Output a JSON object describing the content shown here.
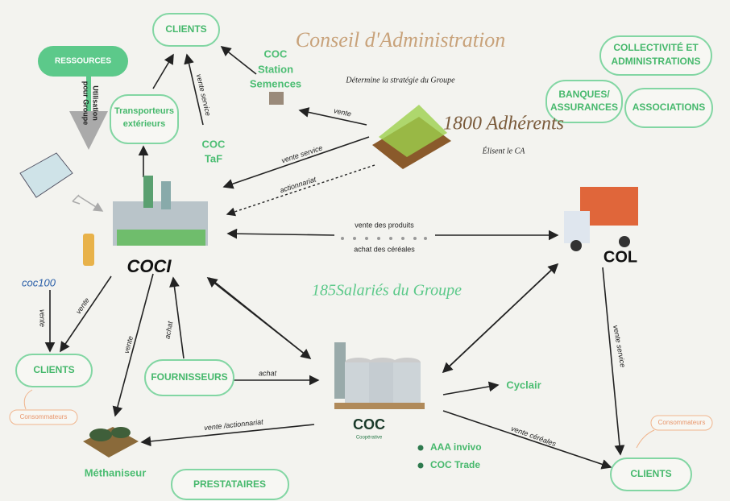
{
  "header": {
    "title": "Conseil d'Administration",
    "subtitle": "Détermine la stratégie du Groupe"
  },
  "adherents": {
    "title": "1800 Adhérents",
    "subtitle": "Élisent le CA"
  },
  "employees": "185Salariés du Groupe",
  "boxes": [
    [
      "CLIENTS"
    ],
    [
      "RESSOURCES"
    ],
    [
      "Transporteurs",
      "extérieurs"
    ],
    [
      "COLLECTIVITÉ ET",
      "ADMINISTRATIONS"
    ],
    [
      "BANQUES/",
      "ASSURANCES"
    ],
    [
      "ASSOCIATIONS"
    ],
    [
      "CLIENTS"
    ],
    [
      "FOURNISSEURS"
    ],
    [
      "CLIENTS"
    ],
    [
      "PRESTATAIRES"
    ],
    [
      "Consommateurs"
    ],
    [
      "Consommateurs"
    ]
  ],
  "entities": [
    [
      "COC",
      "Station",
      "Semences"
    ],
    [
      "COC",
      "TaF"
    ],
    [
      "Cyclair"
    ],
    [
      "Méthaniseur"
    ]
  ],
  "logos": [
    "COCI",
    "coc100",
    "COL",
    "COC",
    "Coopérative"
  ],
  "subsidiaries": [
    "AAA invivo",
    "COC Trade"
  ],
  "edge_labels": [
    [
      "Utilisation",
      "pour Groupe"
    ],
    "vente service",
    "vente",
    "vente service",
    "actionnariat",
    "vente des produits",
    "achat des céréales",
    "vente",
    "vente",
    "vente",
    "achat",
    "achat",
    "vente service",
    "vente /actionnariat",
    "vente céréales"
  ]
}
